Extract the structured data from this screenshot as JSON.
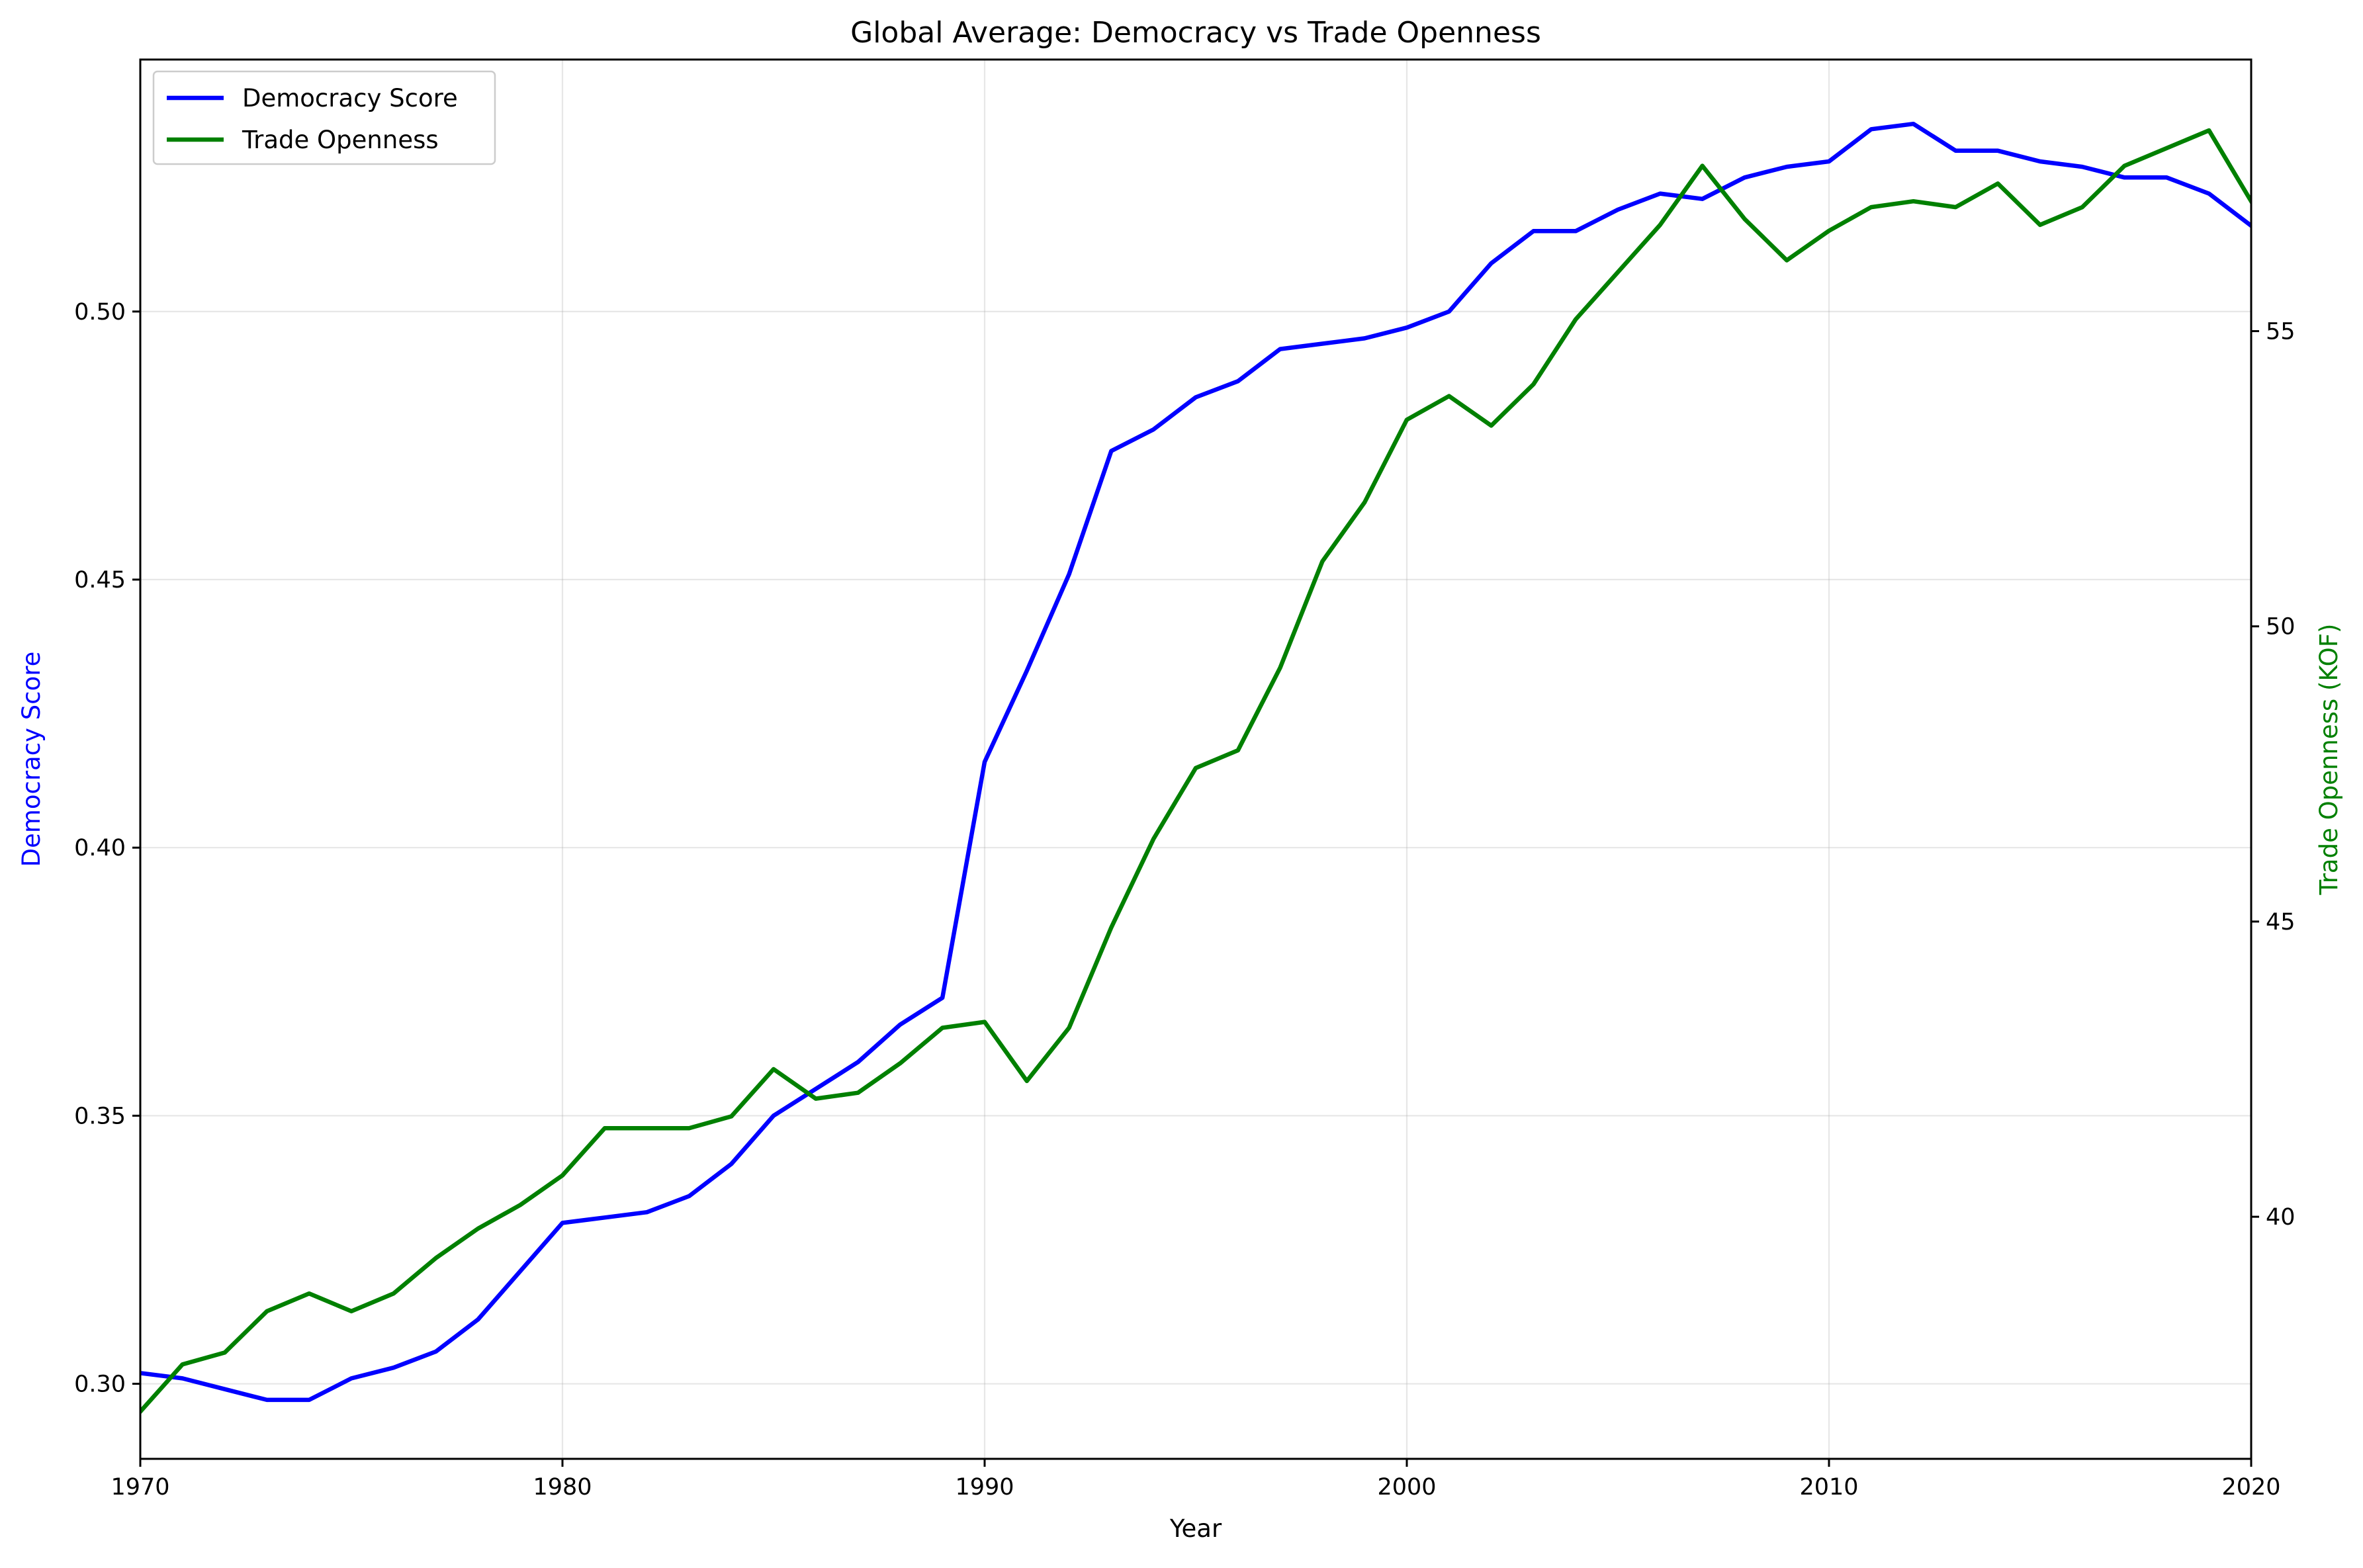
{
  "chart_data": {
    "type": "line",
    "title": "Global Average: Democracy vs Trade Openness",
    "xlabel": "Year",
    "ylabel_left": "Democracy Score",
    "ylabel_right": "Trade Openness (KOF)",
    "xlim": [
      1970,
      2020
    ],
    "ylim_left": [
      0.286,
      0.547
    ],
    "ylim_right": [
      35.9,
      59.6
    ],
    "x_ticks": [
      "1970",
      "1980",
      "1990",
      "2000",
      "2010",
      "2020"
    ],
    "y_left_ticks": [
      "0.30",
      "0.35",
      "0.40",
      "0.45",
      "0.50"
    ],
    "y_right_ticks": [
      "40",
      "45",
      "50",
      "55"
    ],
    "grid": true,
    "legend_position": "top-left",
    "x": [
      1970,
      1971,
      1972,
      1973,
      1974,
      1975,
      1976,
      1977,
      1978,
      1979,
      1980,
      1981,
      1982,
      1983,
      1984,
      1985,
      1986,
      1987,
      1988,
      1989,
      1990,
      1991,
      1992,
      1993,
      1994,
      1995,
      1996,
      1997,
      1998,
      1999,
      2000,
      2001,
      2002,
      2003,
      2004,
      2005,
      2006,
      2007,
      2008,
      2009,
      2010,
      2011,
      2012,
      2013,
      2014,
      2015,
      2016,
      2017,
      2018,
      2019,
      2020
    ],
    "series": [
      {
        "name": "Democracy Score",
        "axis": "left",
        "color": "#0000ff",
        "values": [
          0.302,
          0.301,
          0.299,
          0.297,
          0.297,
          0.301,
          0.303,
          0.306,
          0.312,
          0.321,
          0.33,
          0.331,
          0.332,
          0.335,
          0.341,
          0.35,
          0.355,
          0.36,
          0.367,
          0.372,
          0.416,
          0.433,
          0.451,
          0.474,
          0.478,
          0.484,
          0.487,
          0.493,
          0.494,
          0.495,
          0.497,
          0.5,
          0.509,
          0.515,
          0.515,
          0.519,
          0.522,
          0.521,
          0.525,
          0.527,
          0.528,
          0.534,
          0.535,
          0.53,
          0.53,
          0.528,
          0.527,
          0.525,
          0.525,
          0.522,
          0.516
        ]
      },
      {
        "name": "Trade Openness",
        "axis": "right",
        "color": "#008000",
        "values": [
          36.7,
          37.5,
          37.7,
          38.4,
          38.7,
          38.4,
          38.7,
          39.3,
          39.8,
          40.2,
          40.7,
          41.5,
          41.5,
          41.5,
          41.7,
          42.5,
          42.0,
          42.1,
          42.6,
          43.2,
          43.3,
          42.3,
          43.2,
          44.9,
          46.4,
          47.6,
          47.9,
          49.3,
          51.1,
          52.1,
          53.5,
          53.9,
          53.4,
          54.1,
          55.2,
          56.0,
          56.8,
          57.8,
          56.9,
          56.2,
          56.7,
          57.1,
          57.2,
          57.1,
          57.5,
          56.8,
          57.1,
          57.8,
          58.1,
          58.4,
          57.2
        ]
      }
    ]
  }
}
